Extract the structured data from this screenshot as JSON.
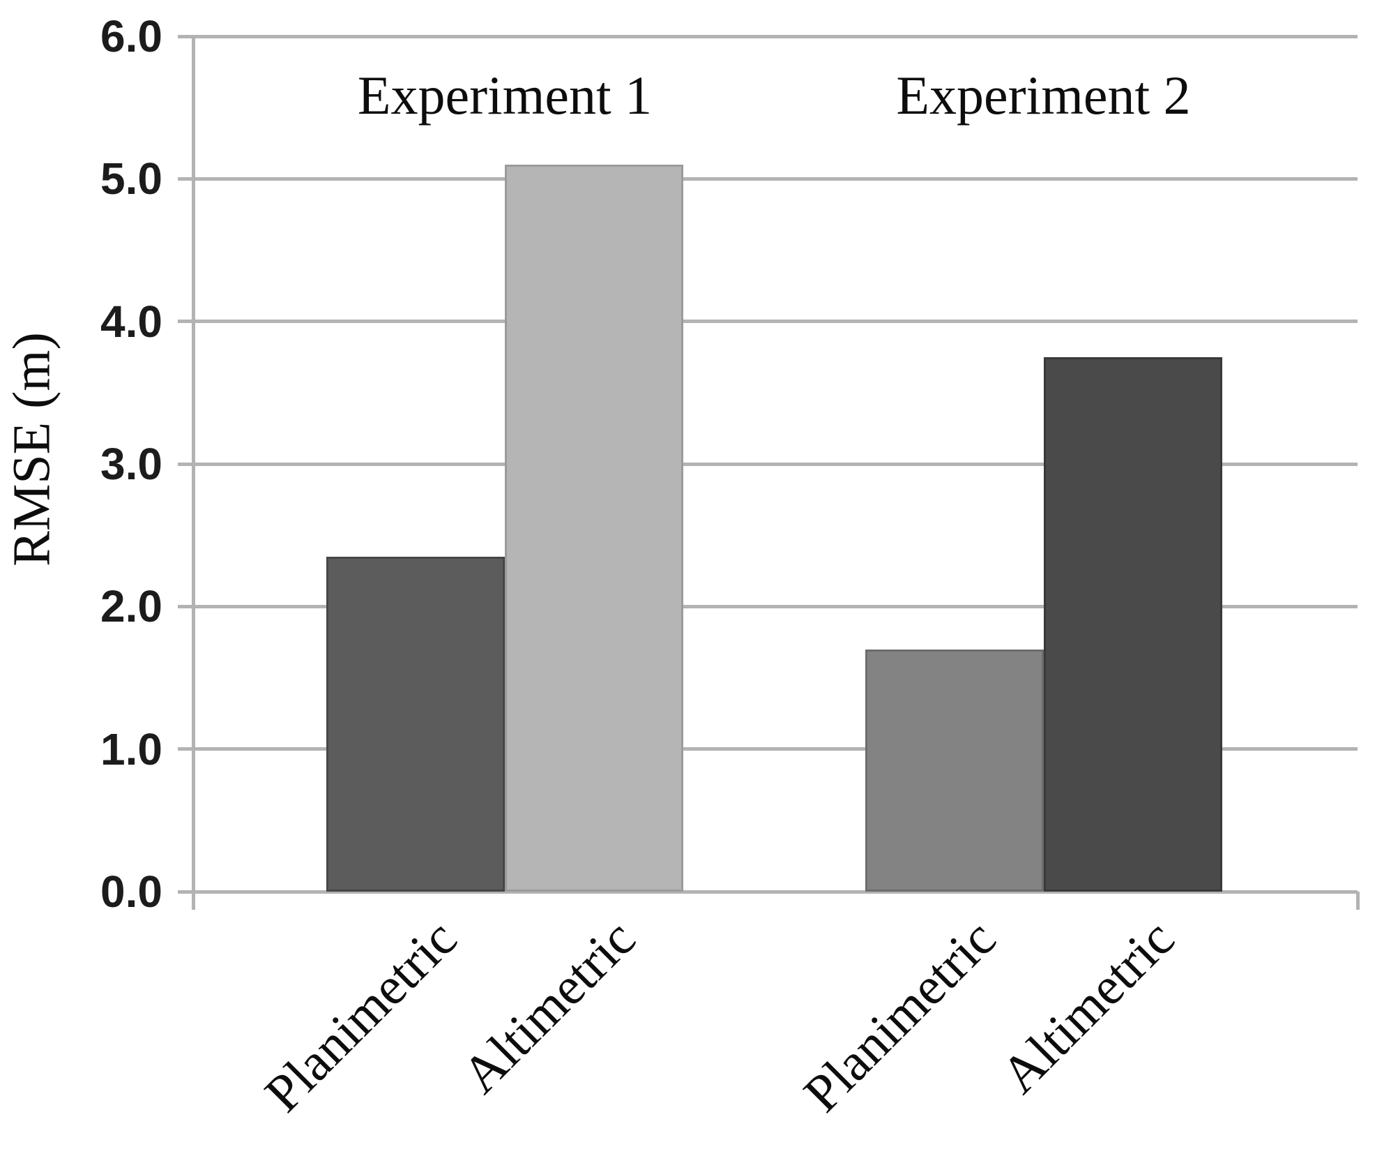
{
  "chart_data": {
    "type": "bar",
    "title": "",
    "xlabel": "",
    "ylabel": "RMSE (m)",
    "ylim": [
      0.0,
      6.0
    ],
    "yticks": [
      "0.0",
      "1.0",
      "2.0",
      "3.0",
      "4.0",
      "5.0",
      "6.0"
    ],
    "grid": "horizontal",
    "legend_position": "none",
    "axis_color": "#b3b3b3",
    "text_color": "#0d0d0d",
    "tick_label_color": "#1c1c1c",
    "groups": [
      {
        "label": "Experiment 1",
        "bars": [
          {
            "category": "Planimetric",
            "value": 2.35,
            "fill": "#5c5c5c",
            "border": "#464646"
          },
          {
            "category": "Altimetric",
            "value": 5.1,
            "fill": "#b5b5b5",
            "border": "#9b9b9b"
          }
        ]
      },
      {
        "label": "Experiment 2",
        "bars": [
          {
            "category": "Planimetric",
            "value": 1.7,
            "fill": "#838383",
            "border": "#6d6d6d"
          },
          {
            "category": "Altimetric",
            "value": 3.75,
            "fill": "#4a4a4a",
            "border": "#393939"
          }
        ]
      }
    ]
  }
}
